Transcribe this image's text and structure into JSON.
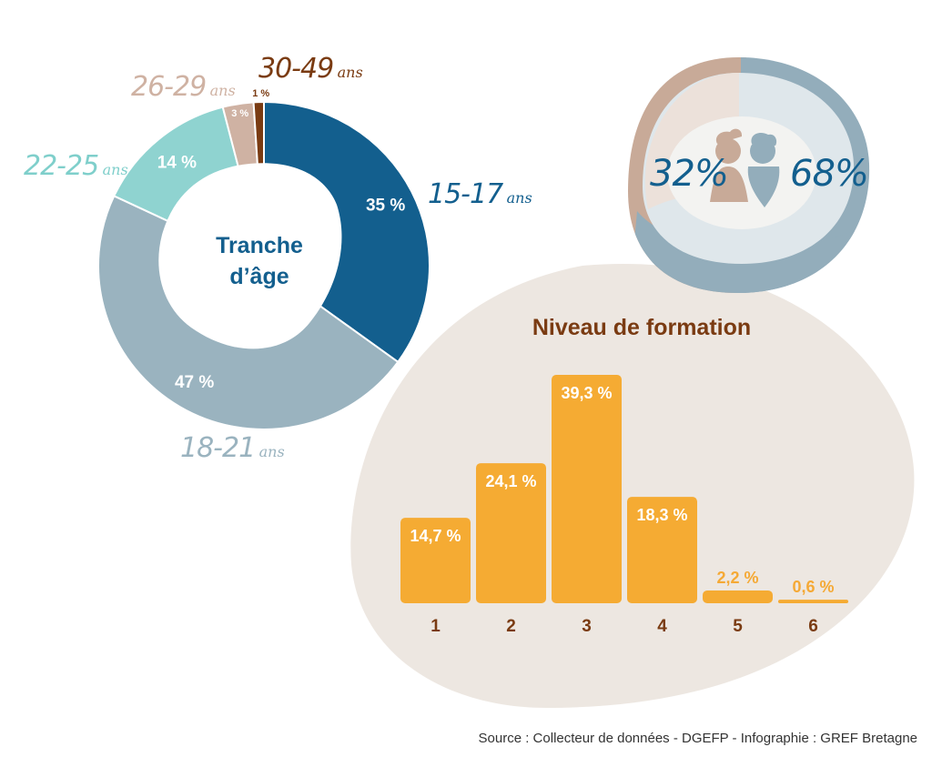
{
  "colors": {
    "age_15_17": "#135f8e",
    "age_18_21": "#9ab3bf",
    "age_22_25": "#8fd3d0",
    "age_26_29": "#cfb2a3",
    "age_30_49": "#7a3b12",
    "bars": "#f5ab33",
    "female": "#c8aa98",
    "male": "#93adbb",
    "blob": "#ede7e1",
    "title_brown": "#7a3b12",
    "title_blue": "#135f8e"
  },
  "age_chart": {
    "title_line1": "Tranche",
    "title_line2": "d’âge",
    "labels": {
      "age_15_17": {
        "range": "15-17",
        "unit": "ans"
      },
      "age_18_21": {
        "range": "18-21",
        "unit": "ans"
      },
      "age_22_25": {
        "range": "22-25",
        "unit": "ans"
      },
      "age_26_29": {
        "range": "26-29",
        "unit": "ans"
      },
      "age_30_49": {
        "range": "30-49",
        "unit": "ans"
      }
    }
  },
  "gender": {
    "female_pct": "32%",
    "male_pct": "68%",
    "icon": "female-male-icon"
  },
  "formation": {
    "title": "Niveau de formation"
  },
  "chart_data": [
    {
      "type": "pie",
      "title": "Tranche d’âge",
      "categories": [
        "15-17 ans",
        "18-21 ans",
        "22-25 ans",
        "26-29 ans",
        "30-49 ans"
      ],
      "values": [
        35,
        47,
        14,
        3,
        1
      ],
      "value_labels": [
        "35 %",
        "47 %",
        "14 %",
        "3 %",
        "1 %"
      ],
      "unit": "%"
    },
    {
      "type": "pie",
      "categories": [
        "femmes",
        "hommes"
      ],
      "values": [
        32,
        68
      ],
      "value_labels": [
        "32%",
        "68%"
      ],
      "unit": "%"
    },
    {
      "type": "bar",
      "title": "Niveau de formation",
      "categories": [
        "1",
        "2",
        "3",
        "4",
        "5",
        "6"
      ],
      "values": [
        14.7,
        24.1,
        39.3,
        18.3,
        2.2,
        0.6
      ],
      "value_labels": [
        "14,7 %",
        "24,1 %",
        "39,3 %",
        "18,3 %",
        "2,2 %",
        "0,6 %"
      ],
      "unit": "%"
    }
  ],
  "source": "Source : Collecteur de données - DGEFP - Infographie : GREF Bretagne"
}
